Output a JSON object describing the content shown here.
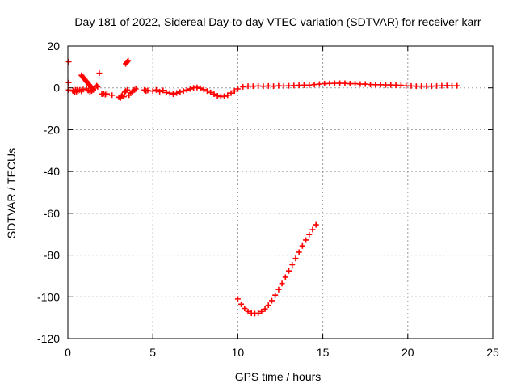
{
  "chart_data": {
    "type": "scatter",
    "title": "Day 181 of 2022, Sidereal Day-to-day VTEC variation (SDTVAR) for receiver karr",
    "xlabel": "GPS time / hours",
    "ylabel": "SDTVAR / TECUs",
    "xlim": [
      0,
      25
    ],
    "ylim": [
      -120,
      20
    ],
    "xticks": [
      0,
      5,
      10,
      15,
      20,
      25
    ],
    "yticks": [
      20,
      0,
      -20,
      -40,
      -60,
      -80,
      -100,
      -120
    ],
    "grid": true,
    "marker": "plus",
    "color": "#ff0000",
    "series": [
      {
        "name": "SDTVAR",
        "points": [
          [
            0.05,
            12.5
          ],
          [
            0.05,
            2.5
          ],
          [
            0.05,
            -1.0
          ],
          [
            0.3,
            -1.5
          ],
          [
            0.35,
            -1.2
          ],
          [
            0.4,
            -2.0
          ],
          [
            0.45,
            -1.0
          ],
          [
            0.5,
            -1.8
          ],
          [
            0.55,
            -1.0
          ],
          [
            0.6,
            -1.5
          ],
          [
            0.7,
            -1.0
          ],
          [
            0.8,
            -1.6
          ],
          [
            0.9,
            -0.8
          ],
          [
            0.8,
            6.0
          ],
          [
            0.85,
            5.5
          ],
          [
            0.9,
            5.0
          ],
          [
            0.95,
            4.5
          ],
          [
            1.0,
            4.0
          ],
          [
            1.05,
            3.5
          ],
          [
            1.1,
            3.0
          ],
          [
            1.15,
            2.5
          ],
          [
            1.2,
            2.0
          ],
          [
            1.25,
            1.5
          ],
          [
            1.3,
            1.0
          ],
          [
            1.35,
            0.5
          ],
          [
            1.4,
            0.0
          ],
          [
            1.45,
            -0.5
          ],
          [
            1.5,
            -1.0
          ],
          [
            1.1,
            -0.5
          ],
          [
            1.2,
            -1.2
          ],
          [
            1.3,
            -2.0
          ],
          [
            1.4,
            -1.5
          ],
          [
            1.5,
            -0.5
          ],
          [
            1.6,
            0.5
          ],
          [
            1.7,
            1.0
          ],
          [
            1.75,
            0.5
          ],
          [
            1.85,
            7.0
          ],
          [
            2.0,
            -3.0
          ],
          [
            2.1,
            -2.8
          ],
          [
            2.2,
            -3.2
          ],
          [
            2.3,
            -2.9
          ],
          [
            2.6,
            -3.5
          ],
          [
            3.0,
            -4.5
          ],
          [
            3.1,
            -4.8
          ],
          [
            3.15,
            -4.0
          ],
          [
            3.2,
            -3.5
          ],
          [
            3.3,
            -4.2
          ],
          [
            3.35,
            -2.0
          ],
          [
            3.4,
            -1.5
          ],
          [
            3.5,
            -1.0
          ],
          [
            3.4,
            11.5
          ],
          [
            3.45,
            12.0
          ],
          [
            3.5,
            12.5
          ],
          [
            3.55,
            13.0
          ],
          [
            3.6,
            -3.5
          ],
          [
            3.7,
            -2.5
          ],
          [
            3.8,
            -2.0
          ],
          [
            3.9,
            -1.0
          ],
          [
            4.0,
            -0.5
          ],
          [
            4.5,
            -1.0
          ],
          [
            4.6,
            -1.5
          ],
          [
            4.7,
            -1.2
          ],
          [
            5.0,
            -1.5
          ],
          [
            5.2,
            -1.0
          ],
          [
            5.4,
            -1.8
          ],
          [
            5.6,
            -1.2
          ],
          [
            5.8,
            -2.2
          ],
          [
            6.0,
            -2.5
          ],
          [
            6.2,
            -3.0
          ],
          [
            6.4,
            -2.5
          ],
          [
            6.6,
            -2.0
          ],
          [
            6.8,
            -1.5
          ],
          [
            7.0,
            -1.0
          ],
          [
            7.2,
            -0.5
          ],
          [
            7.4,
            0.0
          ],
          [
            7.6,
            0.2
          ],
          [
            7.8,
            -0.2
          ],
          [
            8.0,
            -0.8
          ],
          [
            8.2,
            -1.5
          ],
          [
            8.4,
            -2.2
          ],
          [
            8.6,
            -3.0
          ],
          [
            8.8,
            -3.8
          ],
          [
            9.0,
            -4.2
          ],
          [
            9.2,
            -4.0
          ],
          [
            9.4,
            -3.5
          ],
          [
            9.6,
            -2.5
          ],
          [
            9.8,
            -1.5
          ],
          [
            10.0,
            -0.5
          ],
          [
            10.3,
            0.5
          ],
          [
            10.6,
            0.8
          ],
          [
            10.9,
            0.8
          ],
          [
            11.2,
            0.9
          ],
          [
            11.5,
            0.8
          ],
          [
            11.8,
            0.9
          ],
          [
            12.1,
            0.8
          ],
          [
            12.4,
            1.0
          ],
          [
            12.7,
            0.9
          ],
          [
            13.0,
            1.0
          ],
          [
            13.3,
            1.1
          ],
          [
            13.6,
            1.2
          ],
          [
            13.9,
            1.3
          ],
          [
            14.2,
            1.3
          ],
          [
            14.5,
            1.6
          ],
          [
            14.8,
            1.8
          ],
          [
            15.1,
            2.0
          ],
          [
            15.4,
            2.1
          ],
          [
            15.7,
            2.2
          ],
          [
            16.0,
            2.2
          ],
          [
            16.3,
            2.2
          ],
          [
            16.6,
            2.0
          ],
          [
            16.9,
            2.0
          ],
          [
            17.2,
            1.8
          ],
          [
            17.5,
            1.8
          ],
          [
            17.8,
            1.6
          ],
          [
            18.1,
            1.5
          ],
          [
            18.4,
            1.5
          ],
          [
            18.7,
            1.4
          ],
          [
            19.0,
            1.4
          ],
          [
            19.3,
            1.3
          ],
          [
            19.6,
            1.2
          ],
          [
            19.9,
            1.0
          ],
          [
            20.2,
            0.9
          ],
          [
            20.5,
            0.8
          ],
          [
            20.8,
            0.8
          ],
          [
            21.1,
            0.8
          ],
          [
            21.4,
            0.8
          ],
          [
            21.7,
            0.9
          ],
          [
            22.0,
            1.0
          ],
          [
            22.3,
            1.1
          ],
          [
            22.6,
            1.0
          ],
          [
            22.9,
            1.0
          ],
          [
            10.0,
            -101.0
          ],
          [
            10.2,
            -103.5
          ],
          [
            10.4,
            -105.5
          ],
          [
            10.6,
            -107.0
          ],
          [
            10.8,
            -107.8
          ],
          [
            11.0,
            -108.0
          ],
          [
            11.2,
            -107.8
          ],
          [
            11.4,
            -107.0
          ],
          [
            11.6,
            -105.8
          ],
          [
            11.8,
            -104.0
          ],
          [
            12.0,
            -101.8
          ],
          [
            12.2,
            -99.2
          ],
          [
            12.4,
            -96.5
          ],
          [
            12.6,
            -93.6
          ],
          [
            12.8,
            -90.6
          ],
          [
            13.0,
            -87.6
          ],
          [
            13.2,
            -84.6
          ],
          [
            13.4,
            -81.6
          ],
          [
            13.6,
            -78.6
          ],
          [
            13.8,
            -75.6
          ],
          [
            14.0,
            -72.8
          ],
          [
            14.2,
            -70.2
          ],
          [
            14.4,
            -67.8
          ],
          [
            14.6,
            -65.5
          ]
        ]
      }
    ]
  }
}
